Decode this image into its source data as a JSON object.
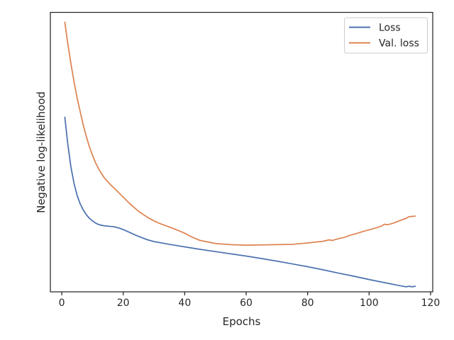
{
  "chart_data": {
    "type": "line",
    "xlabel": "Epochs",
    "ylabel": "Negative log-likelihood",
    "xlim": [
      -3.7,
      120.7
    ],
    "ylim": [
      0,
      100
    ],
    "xticks": [
      0,
      20,
      40,
      60,
      80,
      100,
      120
    ],
    "xtick_labels": [
      "0",
      "20",
      "40",
      "60",
      "80",
      "100",
      "120"
    ],
    "y_ticks_visible": false,
    "grid": false,
    "legend_position": "top-right",
    "series": [
      {
        "name": "Loss",
        "color": "#4c72b0",
        "x": [
          1,
          2,
          3,
          4,
          5,
          6,
          7,
          8,
          9,
          10,
          11,
          12,
          13,
          14,
          15,
          16,
          17,
          18,
          19,
          20,
          22,
          24,
          26,
          28,
          30,
          35,
          40,
          45,
          50,
          55,
          60,
          65,
          70,
          75,
          80,
          85,
          90,
          95,
          100,
          105,
          110,
          112,
          113,
          114,
          115
        ],
        "y": [
          62.5,
          52.6,
          44.6,
          38.8,
          34.5,
          31.5,
          29.3,
          27.6,
          26.3,
          25.4,
          24.6,
          24.1,
          23.8,
          23.6,
          23.5,
          23.4,
          23.3,
          23.0,
          22.7,
          22.3,
          21.3,
          20.3,
          19.4,
          18.6,
          18.0,
          17.0,
          16.1,
          15.2,
          14.4,
          13.6,
          12.8,
          11.9,
          11.0,
          10.0,
          9.0,
          7.9,
          6.7,
          5.6,
          4.4,
          3.3,
          2.2,
          1.8,
          2.0,
          1.8,
          2.0
        ]
      },
      {
        "name": "Val. loss",
        "color": "#dd8452",
        "x": [
          1,
          2,
          3,
          4,
          5,
          6,
          7,
          8,
          9,
          10,
          11,
          12,
          13,
          14,
          15,
          16,
          18,
          20,
          22,
          25,
          28,
          30,
          32,
          35,
          38,
          40,
          42,
          45,
          50,
          55,
          60,
          65,
          70,
          75,
          80,
          85,
          87,
          88,
          90,
          92,
          94,
          96,
          98,
          100,
          102,
          104,
          105,
          106,
          108,
          110,
          112,
          113,
          115
        ],
        "y": [
          96.5,
          88.6,
          81.6,
          75.2,
          69.4,
          64.5,
          59.7,
          55.6,
          51.9,
          48.9,
          46.2,
          44.0,
          42.2,
          40.6,
          39.4,
          38.2,
          36.1,
          33.9,
          31.7,
          28.8,
          26.6,
          25.4,
          24.4,
          23.2,
          21.9,
          21.0,
          19.8,
          18.4,
          17.3,
          16.9,
          16.7,
          16.8,
          16.9,
          17.0,
          17.5,
          18.1,
          18.6,
          18.4,
          19.0,
          19.5,
          20.3,
          20.9,
          21.6,
          22.2,
          22.8,
          23.5,
          24.2,
          24.0,
          24.6,
          25.5,
          26.3,
          26.9,
          27.1
        ]
      }
    ]
  }
}
